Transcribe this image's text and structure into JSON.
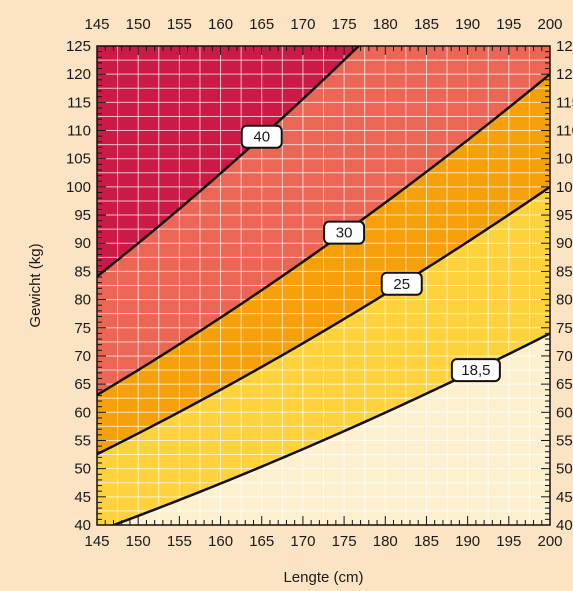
{
  "chart_data": {
    "type": "area",
    "title": "",
    "xlabel": "Lengte (cm)",
    "ylabel": "Gewicht (kg)",
    "xlim": [
      145,
      200
    ],
    "ylim": [
      40,
      125
    ],
    "x_ticks": [
      145,
      150,
      155,
      160,
      165,
      170,
      175,
      180,
      185,
      190,
      195,
      200
    ],
    "y_ticks": [
      40,
      45,
      50,
      55,
      60,
      65,
      70,
      75,
      80,
      85,
      90,
      95,
      100,
      105,
      110,
      115,
      120,
      125
    ],
    "x_tick_labels": [
      "145",
      "150",
      "155",
      "160",
      "165",
      "170",
      "175",
      "180",
      "185",
      "190",
      "195",
      "200"
    ],
    "y_tick_labels": [
      "40",
      "45",
      "50",
      "55",
      "60",
      "65",
      "70",
      "75",
      "80",
      "85",
      "90",
      "95",
      "100",
      "105",
      "110",
      "115",
      "120",
      "125"
    ],
    "grid": true,
    "series": [
      {
        "name": "18,5",
        "bmi": 18.5,
        "label_at_x": 191
      },
      {
        "name": "25",
        "bmi": 25,
        "label_at_x": 182
      },
      {
        "name": "30",
        "bmi": 30,
        "label_at_x": 175
      },
      {
        "name": "40",
        "bmi": 40,
        "label_at_x": 165
      }
    ],
    "zone_colors": [
      "#fdf0cf",
      "#fdd23c",
      "#f6a10c",
      "#ec6656",
      "#cc1a47"
    ]
  }
}
